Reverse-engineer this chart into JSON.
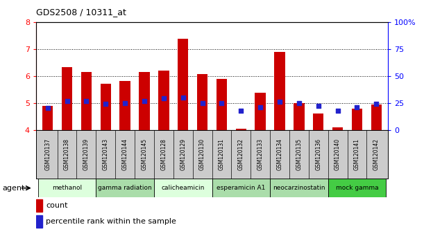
{
  "title": "GDS2508 / 10311_at",
  "samples": [
    "GSM120137",
    "GSM120138",
    "GSM120139",
    "GSM120143",
    "GSM120144",
    "GSM120145",
    "GSM120128",
    "GSM120129",
    "GSM120130",
    "GSM120131",
    "GSM120132",
    "GSM120133",
    "GSM120134",
    "GSM120135",
    "GSM120136",
    "GSM120140",
    "GSM120141",
    "GSM120142"
  ],
  "counts": [
    4.88,
    6.32,
    6.15,
    5.72,
    5.82,
    6.15,
    6.2,
    7.38,
    6.08,
    5.88,
    4.03,
    5.37,
    6.88,
    5.0,
    4.6,
    4.1,
    4.78,
    4.95
  ],
  "percentiles_right": [
    20,
    27,
    27,
    24,
    25,
    27,
    29,
    30,
    25,
    25,
    18,
    21,
    26,
    25,
    22,
    18,
    21,
    24
  ],
  "bar_color": "#cc0000",
  "dot_color": "#2222cc",
  "ylim_left": [
    4,
    8
  ],
  "ylim_right": [
    0,
    100
  ],
  "yticks_left": [
    4,
    5,
    6,
    7,
    8
  ],
  "yticks_right": [
    0,
    25,
    50,
    75,
    100
  ],
  "ytick_labels_right": [
    "0",
    "25",
    "50",
    "75",
    "100%"
  ],
  "groups": [
    {
      "label": "methanol",
      "indices": [
        0,
        1,
        2
      ],
      "color": "#ddffdd"
    },
    {
      "label": "gamma radiation",
      "indices": [
        3,
        4,
        5
      ],
      "color": "#aaddaa"
    },
    {
      "label": "calicheamicin",
      "indices": [
        6,
        7,
        8
      ],
      "color": "#ddffdd"
    },
    {
      "label": "esperamicin A1",
      "indices": [
        9,
        10,
        11
      ],
      "color": "#aaddaa"
    },
    {
      "label": "neocarzinostatin",
      "indices": [
        12,
        13,
        14
      ],
      "color": "#aaddaa"
    },
    {
      "label": "mock gamma",
      "indices": [
        15,
        16,
        17
      ],
      "color": "#44cc44"
    }
  ],
  "legend_count_label": "count",
  "legend_pct_label": "percentile rank within the sample",
  "agent_label": "agent",
  "bar_width": 0.55,
  "dot_size": 25
}
